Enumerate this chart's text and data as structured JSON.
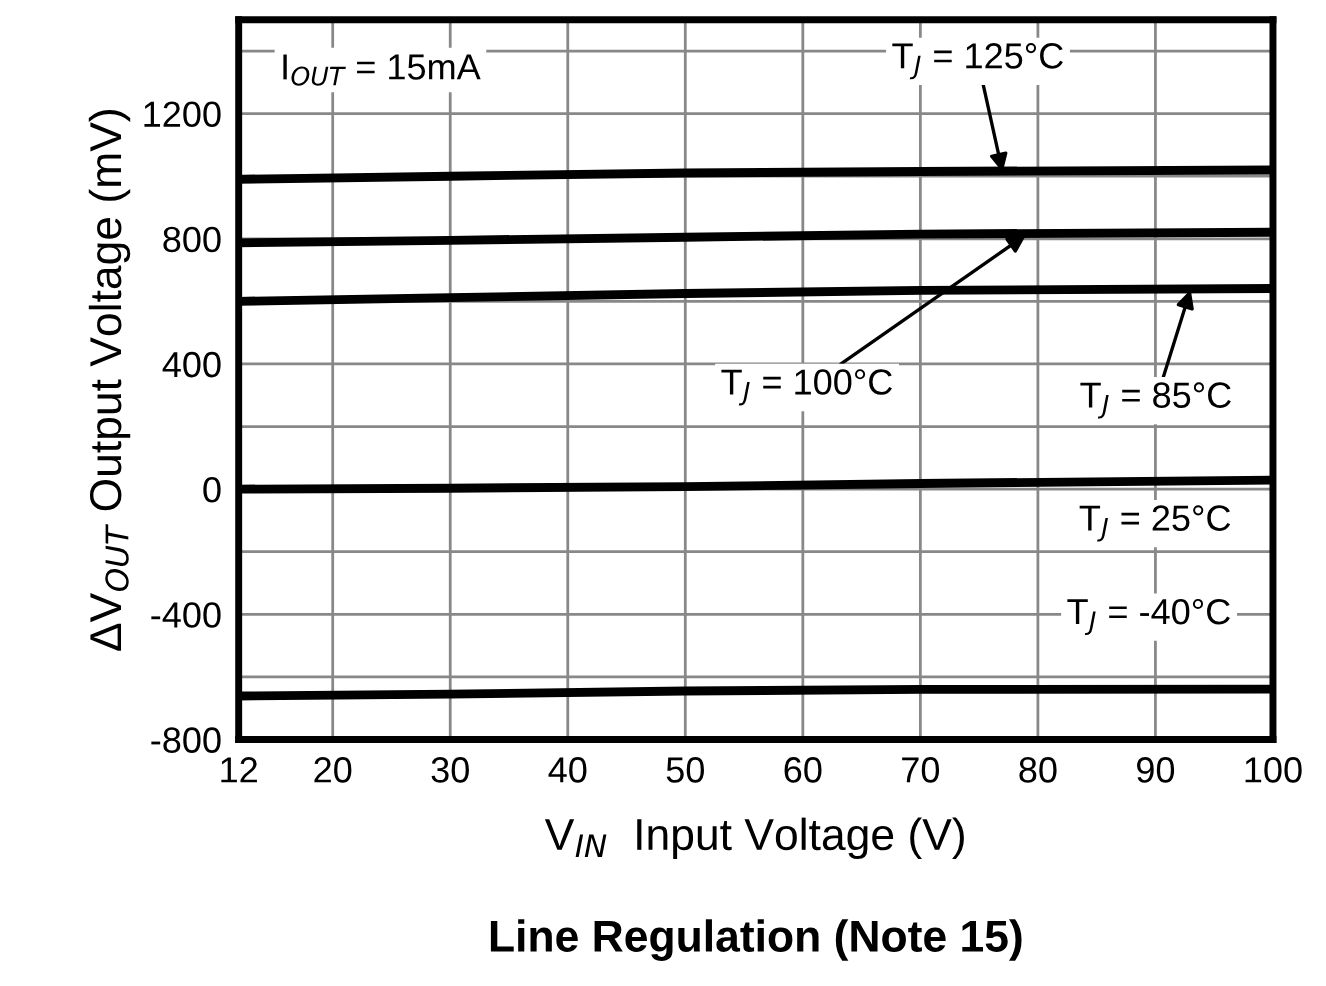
{
  "chart_data": {
    "type": "line",
    "title": "Line Regulation (Note 15)",
    "xlabel": "V$_{IN}$  Input Voltage (V)",
    "ylabel": "ΔV$_{OUT}$ Output Voltage (mV)",
    "xlim": [
      12,
      100
    ],
    "xticks": [
      12,
      20,
      30,
      40,
      50,
      60,
      70,
      80,
      90,
      100
    ],
    "ylim": [
      -800,
      1500
    ],
    "yticks": [
      -800,
      {
        "value": -600,
        "label": null
      },
      -400,
      {
        "value": -200,
        "label": null
      },
      0,
      {
        "value": 200,
        "label": null
      },
      400,
      {
        "value": 600,
        "label": null
      },
      800,
      {
        "value": 1000,
        "label": null
      },
      1200,
      {
        "value": 1400,
        "label": null
      }
    ],
    "grid": true,
    "legend": false,
    "marker": "none",
    "line_style": "solid",
    "series": [
      {
        "color": "#000000",
        "x": [
          12,
          30,
          50,
          70,
          100
        ],
        "values": [
          990,
          1000,
          1010,
          1015,
          1020
        ]
      },
      {
        "color": "#000000",
        "x": [
          12,
          30,
          50,
          70,
          100
        ],
        "values": [
          787,
          795,
          805,
          815,
          821
        ]
      },
      {
        "color": "#000000",
        "x": [
          12,
          30,
          50,
          70,
          100
        ],
        "values": [
          600,
          612,
          625,
          635,
          641
        ]
      },
      {
        "color": "#000000",
        "x": [
          12,
          30,
          50,
          70,
          100
        ],
        "values": [
          0,
          3,
          8,
          18,
          29
        ]
      },
      {
        "color": "#000000",
        "x": [
          12,
          30,
          50,
          70,
          100
        ],
        "values": [
          -661,
          -655,
          -645,
          -640,
          -639
        ]
      }
    ],
    "annotations": [
      "I$_{OUT}$ = 15mA",
      {
        "text": "T$_{J}$ = 125°C",
        "x": 77,
        "y": 1012
      },
      {
        "text": "T$_{J}$ = 100°C",
        "x": 79,
        "y": 813
      },
      {
        "text": "T$_{J}$ = 85°C",
        "x": 93,
        "y": 638
      },
      "T$_{J}$ = 25°C",
      "T$_{J}$ = -40°C"
    ]
  }
}
